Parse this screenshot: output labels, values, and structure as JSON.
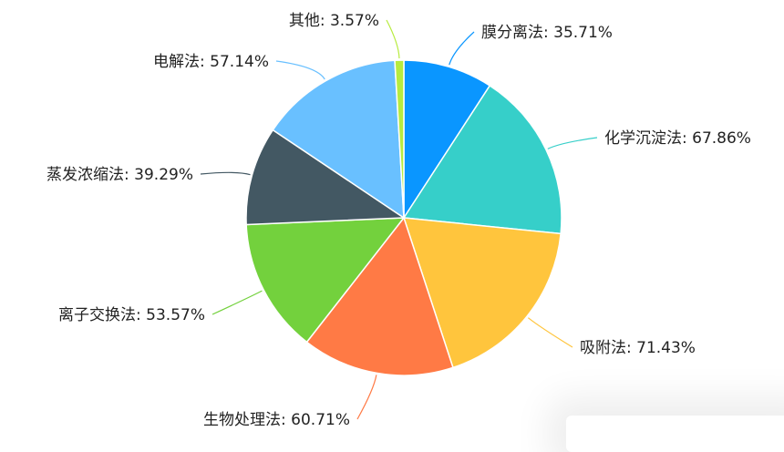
{
  "chart_data": {
    "type": "pie",
    "categories": [
      "膜分离法",
      "化学沉淀法",
      "吸附法",
      "生物处理法",
      "离子交换法",
      "蒸发浓缩法",
      "电解法",
      "其他"
    ],
    "values": [
      35.71,
      67.86,
      71.43,
      60.71,
      53.57,
      39.29,
      57.14,
      3.57
    ],
    "labels": [
      "膜分离法: 35.71%",
      "化学沉淀法: 67.86%",
      "吸附法: 71.43%",
      "生物处理法: 60.71%",
      "离子交换法: 53.57%",
      "蒸发浓缩法: 39.29%",
      "电解法: 57.14%",
      "其他: 3.57%"
    ],
    "colors": [
      "#0a96ff",
      "#36cfc9",
      "#ffc53d",
      "#ff7a45",
      "#73d13d",
      "#435863",
      "#69c0ff",
      "#b7eb3f"
    ],
    "legend": "none"
  }
}
